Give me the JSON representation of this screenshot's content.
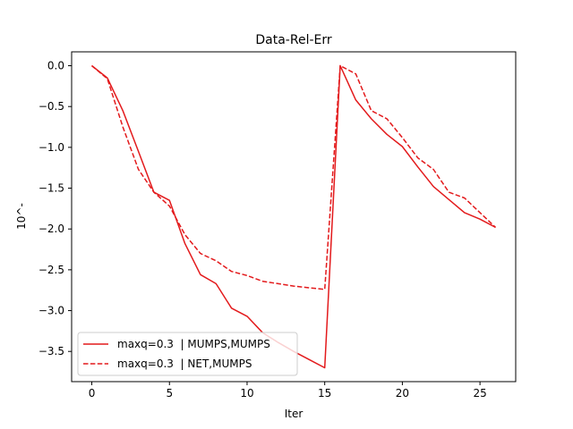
{
  "chart_data": {
    "type": "line",
    "title": "Data-Rel-Err",
    "xlabel": "Iter",
    "ylabel": "10^-",
    "xlim": [
      -1.3,
      27.3
    ],
    "ylim": [
      -3.87,
      0.17
    ],
    "xticks": [
      0,
      5,
      10,
      15,
      20,
      25
    ],
    "xtick_labels": [
      "0",
      "5",
      "10",
      "15",
      "20",
      "25"
    ],
    "yticks": [
      0.0,
      -0.5,
      -1.0,
      -1.5,
      -2.0,
      -2.5,
      -3.0,
      -3.5
    ],
    "ytick_labels": [
      "0.0",
      "−0.5",
      "−1.0",
      "−1.5",
      "−2.0",
      "−2.5",
      "−3.0",
      "−3.5"
    ],
    "grid": false,
    "legend_position": "lower-left",
    "x": [
      0,
      1,
      2,
      3,
      4,
      5,
      6,
      7,
      8,
      9,
      10,
      11,
      12,
      13,
      14,
      15,
      16,
      17,
      18,
      19,
      20,
      21,
      22,
      23,
      24,
      25,
      26
    ],
    "series": [
      {
        "name": "maxq=0.3  | MUMPS,MUMPS",
        "color": "#e31a1c",
        "dash": "solid",
        "values": [
          0.0,
          -0.15,
          -0.55,
          -1.05,
          -1.55,
          -1.65,
          -2.18,
          -2.56,
          -2.67,
          -2.97,
          -3.07,
          -3.27,
          -3.39,
          -3.5,
          -3.6,
          -3.7,
          0.0,
          -0.42,
          -0.65,
          -0.84,
          -0.99,
          -1.24,
          -1.48,
          -1.64,
          -1.8,
          -1.88,
          -1.98
        ]
      },
      {
        "name": "maxq=0.3  | NET,MUMPS",
        "color": "#e31a1c",
        "dash": "dashed",
        "values": [
          0.0,
          -0.16,
          -0.75,
          -1.27,
          -1.55,
          -1.72,
          -2.07,
          -2.3,
          -2.39,
          -2.52,
          -2.57,
          -2.64,
          -2.67,
          -2.7,
          -2.72,
          -2.74,
          0.0,
          -0.1,
          -0.55,
          -0.65,
          -0.88,
          -1.13,
          -1.27,
          -1.55,
          -1.62,
          -1.8,
          -1.98
        ]
      }
    ]
  }
}
